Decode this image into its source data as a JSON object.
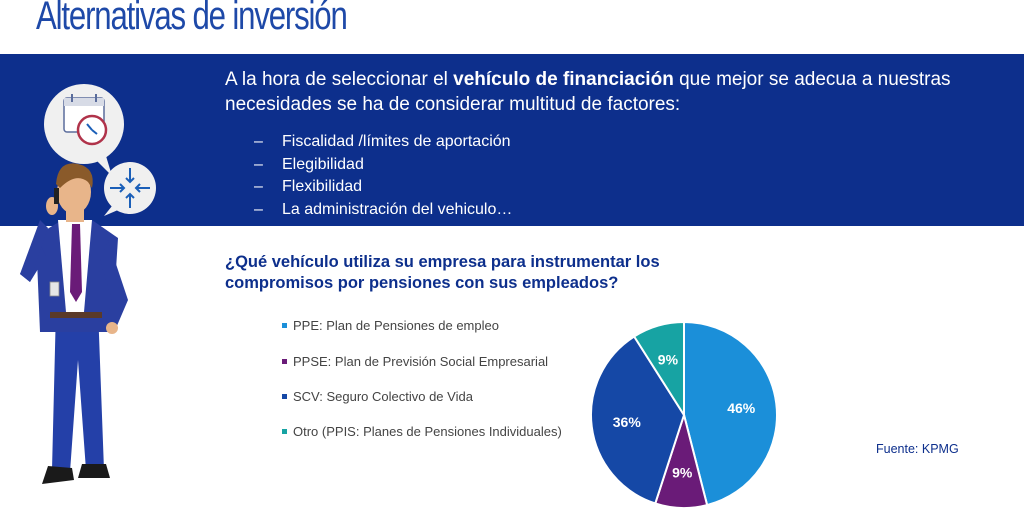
{
  "page": {
    "title": "Alternativas de inversión",
    "intro_before": "A la hora de seleccionar el ",
    "intro_bold": "vehículo de financiación",
    "intro_after": " que mejor se adecua a nuestras necesidades se ha de considerar multitud de factores:",
    "factors": [
      "Fiscalidad /límites de aportación",
      "Elegibilidad",
      "Flexibilidad",
      "La administración del vehiculo…"
    ],
    "question": "¿Qué vehículo utiliza su empresa para instrumentar los compromisos por pensiones con sus empleados?",
    "source": "Fuente: KPMG"
  },
  "colors": {
    "banner": "#0d2f8c",
    "title": "#1e49a8",
    "ppe": "#1b8fd9",
    "ppse": "#6a1b78",
    "scv": "#1548a6",
    "otro": "#17a3a3"
  },
  "chart_data": {
    "type": "pie",
    "title": "",
    "categories": [
      "PPE: Plan de Pensiones de empleo",
      "PPSE: Plan de Previsión Social Empresarial",
      "SCV: Seguro Colectivo de Vida",
      "Otro (PPIS: Planes de Pensiones Individuales)"
    ],
    "values": [
      46,
      9,
      36,
      9
    ],
    "labels": [
      "46%",
      "9%",
      "36%",
      "9%"
    ],
    "colors": [
      "#1b8fd9",
      "#6a1b78",
      "#1548a6",
      "#17a3a3"
    ],
    "start": "top, clockwise",
    "legend": "left"
  }
}
